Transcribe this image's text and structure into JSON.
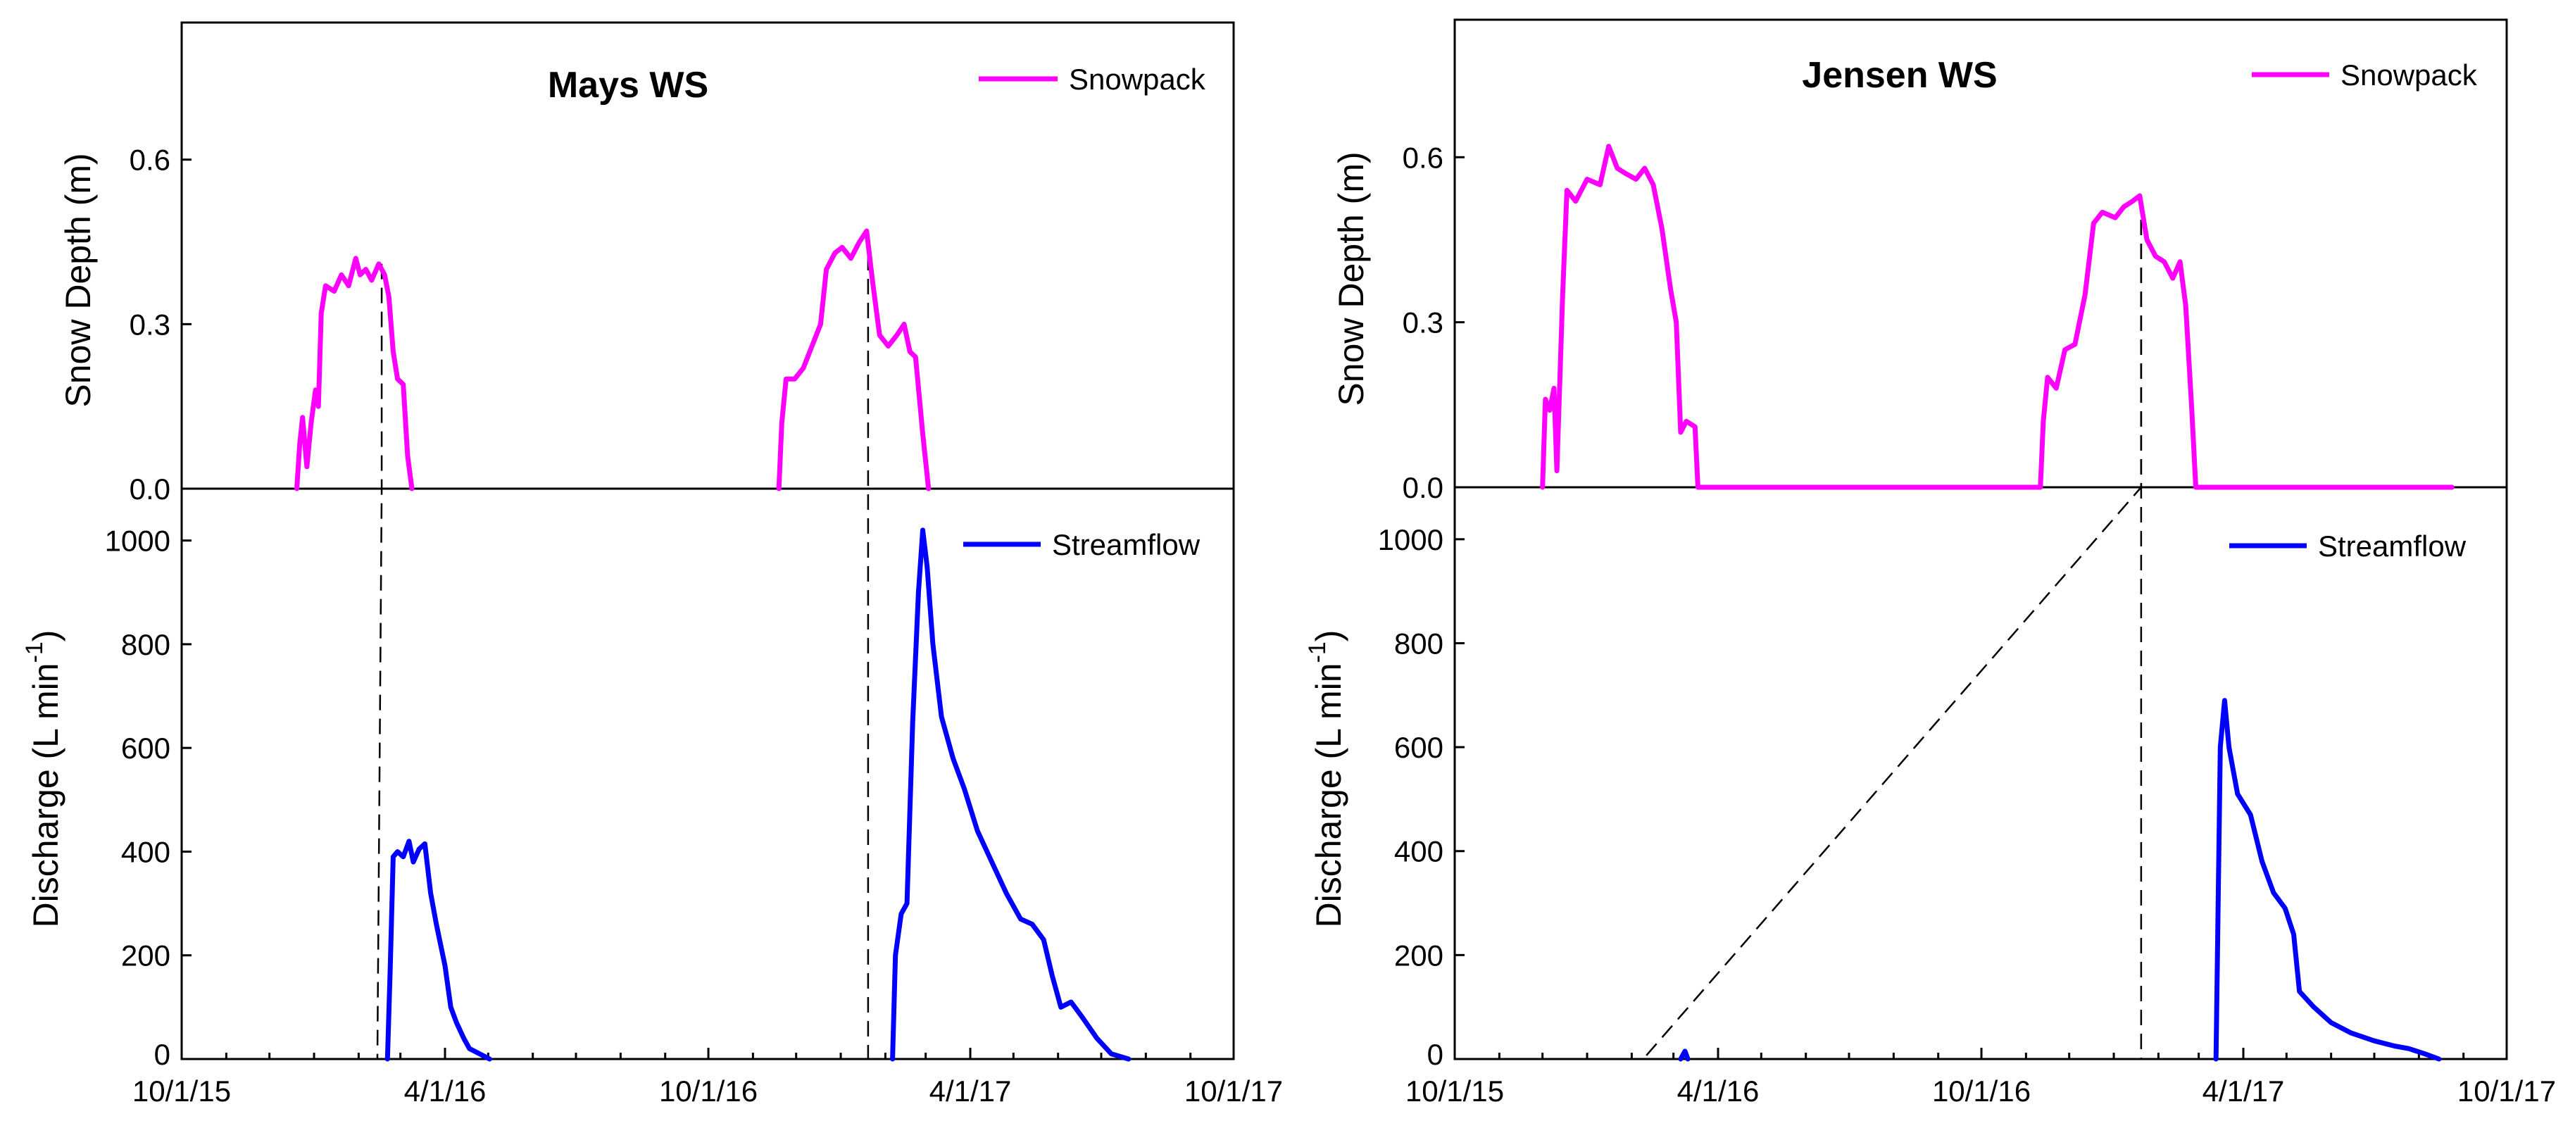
{
  "colors": {
    "snowpack": "#ff00ff",
    "streamflow": "#0000ff",
    "axis": "#000000"
  },
  "chart_data": [
    {
      "type": "line",
      "title": "Mays WS",
      "x_tick_labels": [
        "10/1/15",
        "4/1/16",
        "10/1/16",
        "4/1/17",
        "10/1/17"
      ],
      "x_range": [
        "2015-10-01",
        "2017-10-01"
      ],
      "snow": {
        "series_name": "Snowpack",
        "ylabel": "Snow Depth (m)",
        "ylim": [
          0,
          0.85
        ],
        "yticks": [
          "0.0",
          "0.3",
          "0.6"
        ],
        "ytick_values": [
          0,
          0.3,
          0.6
        ],
        "points": [
          [
            "2015-12-20",
            0
          ],
          [
            "2015-12-22",
            0.08
          ],
          [
            "2015-12-24",
            0.13
          ],
          [
            "2015-12-27",
            0.04
          ],
          [
            "2015-12-30",
            0.12
          ],
          [
            "2016-01-02",
            0.18
          ],
          [
            "2016-01-04",
            0.15
          ],
          [
            "2016-01-06",
            0.32
          ],
          [
            "2016-01-09",
            0.37
          ],
          [
            "2016-01-15",
            0.36
          ],
          [
            "2016-01-20",
            0.39
          ],
          [
            "2016-01-25",
            0.37
          ],
          [
            "2016-01-30",
            0.42
          ],
          [
            "2016-02-02",
            0.39
          ],
          [
            "2016-02-06",
            0.4
          ],
          [
            "2016-02-10",
            0.38
          ],
          [
            "2016-02-15",
            0.41
          ],
          [
            "2016-02-19",
            0.39
          ],
          [
            "2016-02-22",
            0.35
          ],
          [
            "2016-02-25",
            0.25
          ],
          [
            "2016-02-28",
            0.2
          ],
          [
            "2016-03-03",
            0.19
          ],
          [
            "2016-03-06",
            0.06
          ],
          [
            "2016-03-09",
            0
          ]
        ],
        "peak_date": "2016-02-17"
      },
      "flow": {
        "series_name": "Streamflow",
        "ylabel": "Discharge (L min",
        "ylabel_sup": "-1",
        "ylabel_close": ")",
        "ylim": [
          0,
          1100
        ],
        "yticks": [
          "0",
          "200",
          "400",
          "600",
          "800",
          "1000"
        ],
        "ytick_values": [
          0,
          200,
          400,
          600,
          800,
          1000
        ],
        "points": [
          [
            "2016-02-21",
            0
          ],
          [
            "2016-02-23",
            180
          ],
          [
            "2016-02-25",
            390
          ],
          [
            "2016-02-28",
            400
          ],
          [
            "2016-03-03",
            390
          ],
          [
            "2016-03-07",
            420
          ],
          [
            "2016-03-10",
            380
          ],
          [
            "2016-03-14",
            405
          ],
          [
            "2016-03-18",
            415
          ],
          [
            "2016-03-22",
            320
          ],
          [
            "2016-03-26",
            260
          ],
          [
            "2016-04-01",
            180
          ],
          [
            "2016-04-05",
            100
          ],
          [
            "2016-04-09",
            70
          ],
          [
            "2016-04-14",
            40
          ],
          [
            "2016-04-18",
            20
          ],
          [
            "2016-04-25",
            10
          ],
          [
            "2016-05-02",
            0
          ]
        ],
        "dashed_date": "2016-02-14"
      },
      "snow_season_2": {
        "points": [
          [
            "2016-11-19",
            0
          ],
          [
            "2016-11-21",
            0.12
          ],
          [
            "2016-11-24",
            0.2
          ],
          [
            "2016-11-30",
            0.2
          ],
          [
            "2016-12-06",
            0.22
          ],
          [
            "2016-12-12",
            0.26
          ],
          [
            "2016-12-18",
            0.3
          ],
          [
            "2016-12-22",
            0.4
          ],
          [
            "2016-12-28",
            0.43
          ],
          [
            "2017-01-02",
            0.44
          ],
          [
            "2017-01-08",
            0.42
          ],
          [
            "2017-01-14",
            0.45
          ],
          [
            "2017-01-19",
            0.47
          ],
          [
            "2017-01-23",
            0.38
          ],
          [
            "2017-01-28",
            0.28
          ],
          [
            "2017-02-03",
            0.26
          ],
          [
            "2017-02-09",
            0.28
          ],
          [
            "2017-02-14",
            0.3
          ],
          [
            "2017-02-18",
            0.25
          ],
          [
            "2017-02-22",
            0.24
          ],
          [
            "2017-02-27",
            0.1
          ],
          [
            "2017-03-03",
            0
          ]
        ],
        "peak_date": "2017-01-20"
      },
      "flow_season_2": {
        "points": [
          [
            "2017-02-06",
            0
          ],
          [
            "2017-02-08",
            200
          ],
          [
            "2017-02-12",
            280
          ],
          [
            "2017-02-16",
            300
          ],
          [
            "2017-02-20",
            650
          ],
          [
            "2017-02-24",
            900
          ],
          [
            "2017-02-27",
            1020
          ],
          [
            "2017-03-02",
            950
          ],
          [
            "2017-03-06",
            800
          ],
          [
            "2017-03-12",
            660
          ],
          [
            "2017-03-20",
            580
          ],
          [
            "2017-03-28",
            520
          ],
          [
            "2017-04-06",
            440
          ],
          [
            "2017-04-16",
            380
          ],
          [
            "2017-04-26",
            320
          ],
          [
            "2017-05-06",
            270
          ],
          [
            "2017-05-14",
            260
          ],
          [
            "2017-05-22",
            230
          ],
          [
            "2017-05-28",
            160
          ],
          [
            "2017-06-03",
            100
          ],
          [
            "2017-06-10",
            110
          ],
          [
            "2017-06-18",
            80
          ],
          [
            "2017-06-28",
            40
          ],
          [
            "2017-07-08",
            10
          ],
          [
            "2017-07-20",
            0
          ]
        ],
        "dashed_date": "2017-01-20"
      }
    },
    {
      "type": "line",
      "title": "Jensen WS",
      "x_tick_labels": [
        "10/1/15",
        "4/1/16",
        "10/1/16",
        "4/1/17",
        "10/1/17"
      ],
      "x_range": [
        "2015-10-01",
        "2017-10-01"
      ],
      "snow": {
        "series_name": "Snowpack",
        "ylabel": "Snow Depth (m)",
        "ylim": [
          0,
          0.85
        ],
        "yticks": [
          "0.0",
          "0.3",
          "0.6"
        ],
        "ytick_values": [
          0,
          0.3,
          0.6
        ],
        "points": [
          [
            "2015-12-01",
            0
          ],
          [
            "2015-12-03",
            0.16
          ],
          [
            "2015-12-06",
            0.14
          ],
          [
            "2015-12-09",
            0.18
          ],
          [
            "2015-12-11",
            0.03
          ],
          [
            "2015-12-15",
            0.35
          ],
          [
            "2015-12-18",
            0.54
          ],
          [
            "2015-12-24",
            0.52
          ],
          [
            "2016-01-01",
            0.56
          ],
          [
            "2016-01-10",
            0.55
          ],
          [
            "2016-01-16",
            0.62
          ],
          [
            "2016-01-22",
            0.58
          ],
          [
            "2016-01-28",
            0.57
          ],
          [
            "2016-02-04",
            0.56
          ],
          [
            "2016-02-10",
            0.58
          ],
          [
            "2016-02-16",
            0.55
          ],
          [
            "2016-02-22",
            0.47
          ],
          [
            "2016-02-28",
            0.36
          ],
          [
            "2016-03-03",
            0.3
          ],
          [
            "2016-03-06",
            0.1
          ],
          [
            "2016-03-10",
            0.12
          ],
          [
            "2016-03-16",
            0.11
          ],
          [
            "2016-03-18",
            0
          ],
          [
            "2016-11-11",
            0
          ],
          [
            "2016-11-13",
            0.12
          ],
          [
            "2016-11-16",
            0.2
          ],
          [
            "2016-11-22",
            0.18
          ],
          [
            "2016-11-28",
            0.25
          ],
          [
            "2016-12-05",
            0.26
          ],
          [
            "2016-12-12",
            0.35
          ],
          [
            "2016-12-18",
            0.48
          ],
          [
            "2016-12-24",
            0.5
          ],
          [
            "2017-01-02",
            0.49
          ],
          [
            "2017-01-08",
            0.51
          ],
          [
            "2017-01-14",
            0.52
          ],
          [
            "2017-01-19",
            0.53
          ],
          [
            "2017-01-24",
            0.45
          ],
          [
            "2017-01-30",
            0.42
          ],
          [
            "2017-02-05",
            0.41
          ],
          [
            "2017-02-11",
            0.38
          ],
          [
            "2017-02-16",
            0.41
          ],
          [
            "2017-02-20",
            0.33
          ],
          [
            "2017-02-24",
            0.15
          ],
          [
            "2017-02-27",
            0
          ],
          [
            "2017-08-24",
            0
          ]
        ],
        "peak_date": "2017-01-20"
      },
      "flow": {
        "series_name": "Streamflow",
        "ylabel": "Discharge (L min",
        "ylabel_sup": "-1",
        "ylabel_close": ")",
        "ylim": [
          0,
          1100
        ],
        "yticks": [
          "0",
          "200",
          "400",
          "600",
          "800",
          "1000"
        ],
        "ytick_values": [
          0,
          200,
          400,
          600,
          800,
          1000
        ],
        "points": [
          [
            "2016-03-06",
            0
          ],
          [
            "2016-03-09",
            15
          ],
          [
            "2016-03-11",
            0
          ]
        ],
        "dashed_date": "2016-02-09"
      },
      "flow_season_2": {
        "points": [
          [
            "2017-03-13",
            0
          ],
          [
            "2017-03-16",
            600
          ],
          [
            "2017-03-19",
            690
          ],
          [
            "2017-03-22",
            600
          ],
          [
            "2017-03-28",
            510
          ],
          [
            "2017-04-06",
            470
          ],
          [
            "2017-04-14",
            380
          ],
          [
            "2017-04-22",
            320
          ],
          [
            "2017-04-30",
            290
          ],
          [
            "2017-05-06",
            240
          ],
          [
            "2017-05-10",
            130
          ],
          [
            "2017-05-20",
            100
          ],
          [
            "2017-06-01",
            70
          ],
          [
            "2017-06-15",
            50
          ],
          [
            "2017-07-01",
            35
          ],
          [
            "2017-07-15",
            25
          ],
          [
            "2017-07-25",
            20
          ],
          [
            "2017-08-05",
            10
          ],
          [
            "2017-08-15",
            0
          ]
        ],
        "dashed_date": "2017-01-20"
      }
    }
  ]
}
